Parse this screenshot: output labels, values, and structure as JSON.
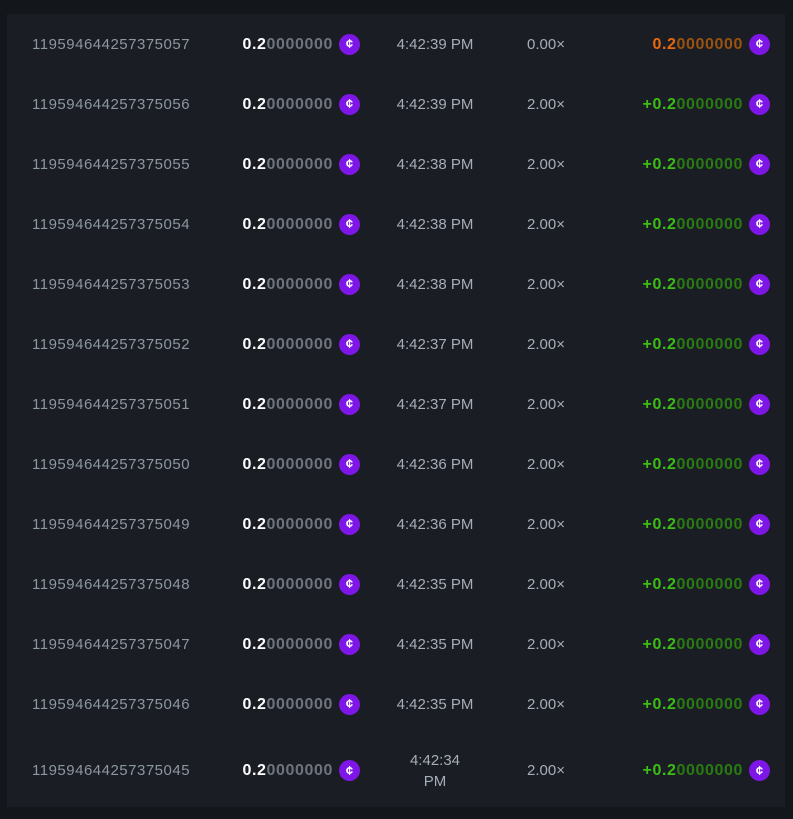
{
  "colors": {
    "page_bg": "#13161b",
    "panel_bg": "#1a1d23",
    "id_text": "#8d97a2",
    "muted_text": "#a6aeb9",
    "amount_lead": "#ffffff",
    "amount_tail": "#6e747e",
    "win_lead": "#3bbd16",
    "win_tail": "#287a12",
    "loss_lead": "#e8690e",
    "loss_tail": "#99520f",
    "coin_purple": "#7f16e8"
  },
  "coin": {
    "icon": "coin-cents-icon",
    "glyph": "¢"
  },
  "table": {
    "rows": [
      {
        "bet_id": "119594644257375057",
        "amount_lead": "0.2",
        "amount_tail": "0000000",
        "time": "4:42:39 PM",
        "multiplier": "0.00×",
        "payout_lead": "0.2",
        "payout_tail": "0000000",
        "payout_type": "loss"
      },
      {
        "bet_id": "119594644257375056",
        "amount_lead": "0.2",
        "amount_tail": "0000000",
        "time": "4:42:39 PM",
        "multiplier": "2.00×",
        "payout_lead": "+0.2",
        "payout_tail": "0000000",
        "payout_type": "win"
      },
      {
        "bet_id": "119594644257375055",
        "amount_lead": "0.2",
        "amount_tail": "0000000",
        "time": "4:42:38 PM",
        "multiplier": "2.00×",
        "payout_lead": "+0.2",
        "payout_tail": "0000000",
        "payout_type": "win"
      },
      {
        "bet_id": "119594644257375054",
        "amount_lead": "0.2",
        "amount_tail": "0000000",
        "time": "4:42:38 PM",
        "multiplier": "2.00×",
        "payout_lead": "+0.2",
        "payout_tail": "0000000",
        "payout_type": "win"
      },
      {
        "bet_id": "119594644257375053",
        "amount_lead": "0.2",
        "amount_tail": "0000000",
        "time": "4:42:38 PM",
        "multiplier": "2.00×",
        "payout_lead": "+0.2",
        "payout_tail": "0000000",
        "payout_type": "win"
      },
      {
        "bet_id": "119594644257375052",
        "amount_lead": "0.2",
        "amount_tail": "0000000",
        "time": "4:42:37 PM",
        "multiplier": "2.00×",
        "payout_lead": "+0.2",
        "payout_tail": "0000000",
        "payout_type": "win"
      },
      {
        "bet_id": "119594644257375051",
        "amount_lead": "0.2",
        "amount_tail": "0000000",
        "time": "4:42:37 PM",
        "multiplier": "2.00×",
        "payout_lead": "+0.2",
        "payout_tail": "0000000",
        "payout_type": "win"
      },
      {
        "bet_id": "119594644257375050",
        "amount_lead": "0.2",
        "amount_tail": "0000000",
        "time": "4:42:36 PM",
        "multiplier": "2.00×",
        "payout_lead": "+0.2",
        "payout_tail": "0000000",
        "payout_type": "win"
      },
      {
        "bet_id": "119594644257375049",
        "amount_lead": "0.2",
        "amount_tail": "0000000",
        "time": "4:42:36 PM",
        "multiplier": "2.00×",
        "payout_lead": "+0.2",
        "payout_tail": "0000000",
        "payout_type": "win"
      },
      {
        "bet_id": "119594644257375048",
        "amount_lead": "0.2",
        "amount_tail": "0000000",
        "time": "4:42:35 PM",
        "multiplier": "2.00×",
        "payout_lead": "+0.2",
        "payout_tail": "0000000",
        "payout_type": "win"
      },
      {
        "bet_id": "119594644257375047",
        "amount_lead": "0.2",
        "amount_tail": "0000000",
        "time": "4:42:35 PM",
        "multiplier": "2.00×",
        "payout_lead": "+0.2",
        "payout_tail": "0000000",
        "payout_type": "win"
      },
      {
        "bet_id": "119594644257375046",
        "amount_lead": "0.2",
        "amount_tail": "0000000",
        "time": "4:42:35 PM",
        "multiplier": "2.00×",
        "payout_lead": "+0.2",
        "payout_tail": "0000000",
        "payout_type": "win"
      },
      {
        "bet_id": "119594644257375045",
        "amount_lead": "0.2",
        "amount_tail": "0000000",
        "time": "4:42:34\nPM",
        "multiplier": "2.00×",
        "payout_lead": "+0.2",
        "payout_tail": "0000000",
        "payout_type": "win"
      }
    ]
  }
}
